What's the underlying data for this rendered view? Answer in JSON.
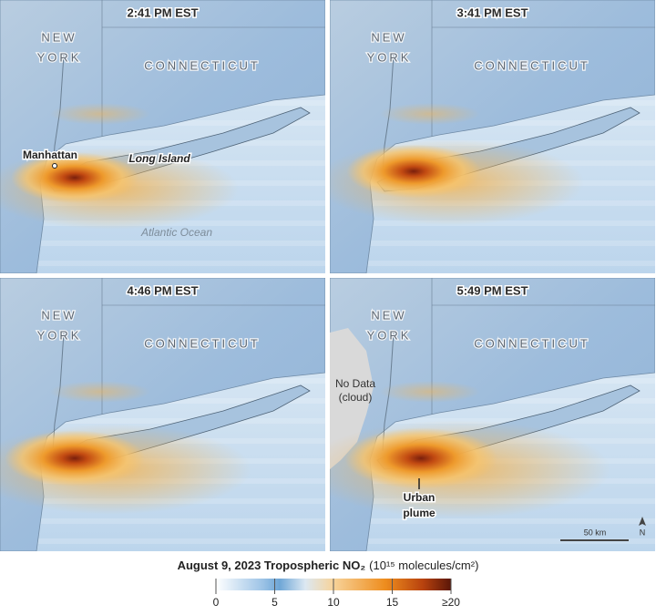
{
  "title": {
    "bold": "August 9, 2023 Tropospheric NO₂",
    "units": "(10¹⁵ molecules/cm²)"
  },
  "colorbar": {
    "lim": [
      0,
      20
    ],
    "ticks": [
      0,
      5,
      10,
      15,
      {
        "value": 20,
        "label": "≥20"
      }
    ]
  },
  "panels": [
    {
      "time": "2:41 PM EST",
      "labels": [
        "NEW",
        "YORK",
        "CONNECTICUT",
        "Manhattan",
        "Long Island",
        "Atlantic Ocean"
      ]
    },
    {
      "time": "3:41 PM EST",
      "labels": [
        "NEW",
        "YORK",
        "CONNECTICUT"
      ]
    },
    {
      "time": "4:46 PM EST",
      "labels": [
        "NEW",
        "YORK",
        "CONNECTICUT"
      ]
    },
    {
      "time": "5:49 PM EST",
      "labels": [
        "NEW",
        "YORK",
        "CONNECTICUT",
        "No Data",
        "(cloud)",
        "Urban",
        "plume",
        "50 km",
        "N"
      ]
    }
  ]
}
